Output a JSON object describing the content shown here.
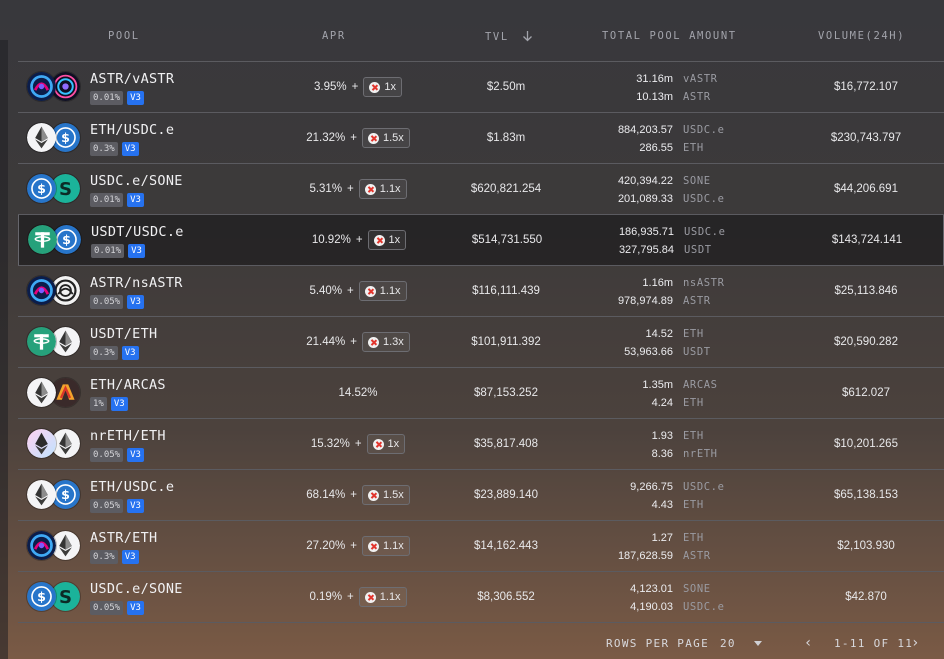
{
  "header": {
    "pool": "POOL",
    "apr": "APR",
    "tvl": "TVL",
    "tvl_sort_icon": "arrow-down-icon",
    "total_pool_amount": "TOTAL POOL AMOUNT",
    "volume": "VOLUME(24H)"
  },
  "rows": [
    {
      "pair": "ASTR/vASTR",
      "fee": "0.01%",
      "ver": "V3",
      "tokens": [
        "astr",
        "vastr"
      ],
      "apr": "3.95%",
      "plus": "+",
      "mult": "1x",
      "tvl": "$2.50m",
      "amt1": "31.16m",
      "sym1": "vASTR",
      "amt2": "10.13m",
      "sym2": "ASTR",
      "vol": "$16,772.107"
    },
    {
      "pair": "ETH/USDC.e",
      "fee": "0.3%",
      "ver": "V3",
      "tokens": [
        "eth",
        "usdc"
      ],
      "apr": "21.32%",
      "plus": "+",
      "mult": "1.5x",
      "tvl": "$1.83m",
      "amt1": "884,203.57",
      "sym1": "USDC.e",
      "amt2": "286.55",
      "sym2": "ETH",
      "vol": "$230,743.797"
    },
    {
      "pair": "USDC.e/SONE",
      "fee": "0.01%",
      "ver": "V3",
      "tokens": [
        "usdc",
        "sone"
      ],
      "apr": "5.31%",
      "plus": "+",
      "mult": "1.1x",
      "tvl": "$620,821.254",
      "amt1": "420,394.22",
      "sym1": "SONE",
      "amt2": "201,089.33",
      "sym2": "USDC.e",
      "vol": "$44,206.691"
    },
    {
      "pair": "USDT/USDC.e",
      "fee": "0.01%",
      "ver": "V3",
      "tokens": [
        "usdt",
        "usdc"
      ],
      "apr": "10.92%",
      "plus": "+",
      "mult": "1x",
      "tvl": "$514,731.550",
      "amt1": "186,935.71",
      "sym1": "USDC.e",
      "amt2": "327,795.84",
      "sym2": "USDT",
      "vol": "$143,724.141"
    },
    {
      "pair": "ASTR/nsASTR",
      "fee": "0.05%",
      "ver": "V3",
      "tokens": [
        "astr",
        "nsastr"
      ],
      "apr": "5.40%",
      "plus": "+",
      "mult": "1.1x",
      "tvl": "$116,111.439",
      "amt1": "1.16m",
      "sym1": "nsASTR",
      "amt2": "978,974.89",
      "sym2": "ASTR",
      "vol": "$25,113.846"
    },
    {
      "pair": "USDT/ETH",
      "fee": "0.3%",
      "ver": "V3",
      "tokens": [
        "usdt",
        "eth"
      ],
      "apr": "21.44%",
      "plus": "+",
      "mult": "1.3x",
      "tvl": "$101,911.392",
      "amt1": "14.52",
      "sym1": "ETH",
      "amt2": "53,963.66",
      "sym2": "USDT",
      "vol": "$20,590.282"
    },
    {
      "pair": "ETH/ARCAS",
      "fee": "1%",
      "ver": "V3",
      "tokens": [
        "eth",
        "arcas"
      ],
      "apr": "14.52%",
      "plus": "",
      "mult": "",
      "tvl": "$87,153.252",
      "amt1": "1.35m",
      "sym1": "ARCAS",
      "amt2": "4.24",
      "sym2": "ETH",
      "vol": "$612.027"
    },
    {
      "pair": "nrETH/ETH",
      "fee": "0.05%",
      "ver": "V3",
      "tokens": [
        "nreth",
        "eth"
      ],
      "apr": "15.32%",
      "plus": "+",
      "mult": "1x",
      "tvl": "$35,817.408",
      "amt1": "1.93",
      "sym1": "ETH",
      "amt2": "8.36",
      "sym2": "nrETH",
      "vol": "$10,201.265"
    },
    {
      "pair": "ETH/USDC.e",
      "fee": "0.05%",
      "ver": "V3",
      "tokens": [
        "eth",
        "usdc"
      ],
      "apr": "68.14%",
      "plus": "+",
      "mult": "1.5x",
      "tvl": "$23,889.140",
      "amt1": "9,266.75",
      "sym1": "USDC.e",
      "amt2": "4.43",
      "sym2": "ETH",
      "vol": "$65,138.153"
    },
    {
      "pair": "ASTR/ETH",
      "fee": "0.3%",
      "ver": "V3",
      "tokens": [
        "astr",
        "eth"
      ],
      "apr": "27.20%",
      "plus": "+",
      "mult": "1.1x",
      "tvl": "$14,162.443",
      "amt1": "1.27",
      "sym1": "ETH",
      "amt2": "187,628.59",
      "sym2": "ASTR",
      "vol": "$2,103.930"
    },
    {
      "pair": "USDC.e/SONE",
      "fee": "0.05%",
      "ver": "V3",
      "tokens": [
        "usdc",
        "sone"
      ],
      "apr": "0.19%",
      "plus": "+",
      "mult": "1.1x",
      "tvl": "$8,306.552",
      "amt1": "4,123.01",
      "sym1": "SONE",
      "amt2": "4,190.03",
      "sym2": "USDC.e",
      "vol": "$42.870"
    }
  ],
  "highlighted_row": 3,
  "footer": {
    "rows_per_page_label": "ROWS PER PAGE",
    "rows_per_page_value": "20",
    "range": "1-11 OF 11",
    "prev_icon": "chevron-left-icon",
    "next_icon": "chevron-right-icon"
  },
  "colors": {
    "version_badge": "#2672f0",
    "usdc": "#2775ca",
    "usdt": "#26a17b",
    "sone": "#1bb39a",
    "boost_x": "#e2352d"
  }
}
